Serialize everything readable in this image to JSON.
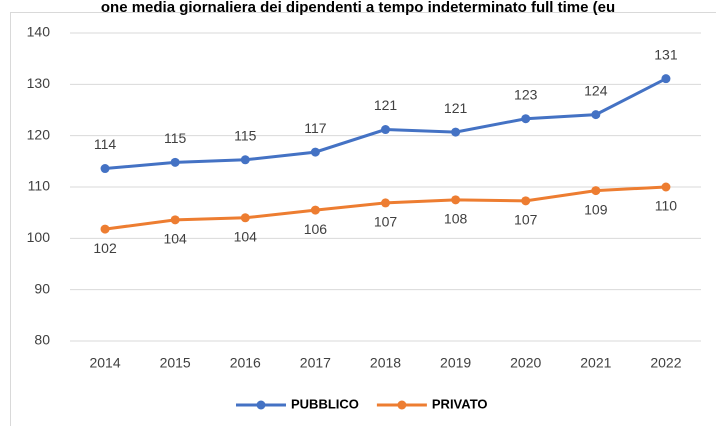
{
  "chart_data": {
    "type": "line",
    "title": "one media giornaliera dei dipendenti a tempo indeterminato full time (eu",
    "categories": [
      "2014",
      "2015",
      "2016",
      "2017",
      "2018",
      "2019",
      "2020",
      "2021",
      "2022"
    ],
    "series": [
      {
        "name": "PUBBLICO",
        "color": "#4472c4",
        "values": [
          113.6,
          114.8,
          115.3,
          116.8,
          121.2,
          120.7,
          123.3,
          124.1,
          131.1
        ],
        "value_labels": [
          "114",
          "115",
          "115",
          "117",
          "121",
          "121",
          "123",
          "124",
          "131"
        ]
      },
      {
        "name": "PRIVATO",
        "color": "#ed7d31",
        "values": [
          101.8,
          103.6,
          104.0,
          105.5,
          106.9,
          107.5,
          107.3,
          109.3,
          110.0
        ],
        "value_labels": [
          "102",
          "104",
          "104",
          "106",
          "107",
          "108",
          "107",
          "109",
          "110"
        ]
      }
    ],
    "ylim": [
      80,
      140
    ],
    "yticks": [
      80,
      90,
      100,
      110,
      120,
      130,
      140
    ],
    "grid": true,
    "legend": "bottom"
  }
}
